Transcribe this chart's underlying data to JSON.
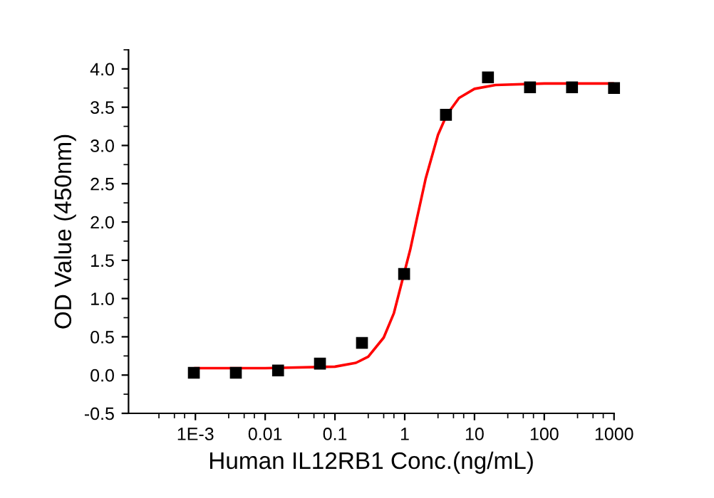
{
  "chart_data": {
    "type": "scatter",
    "xlabel": "Human IL12RB1 Conc.(ng/mL)",
    "ylabel": "OD Value (450nm)",
    "log": "x",
    "grid": false,
    "marker": "square",
    "xlim": [
      0.00011,
      1000
    ],
    "xticks": [
      {
        "value": 0.001,
        "label": "1E-3"
      },
      0.01,
      0.1,
      1,
      10,
      100,
      1000
    ],
    "ylim": [
      -0.5,
      4.25
    ],
    "yticks": [
      -0.5,
      {
        "value": 0,
        "label": "0.0"
      },
      0.5,
      {
        "value": 1,
        "label": "1.0"
      },
      1.5,
      {
        "value": 2,
        "label": "2.0"
      },
      2.5,
      {
        "value": 3,
        "label": "3.0"
      },
      3.5,
      {
        "value": 4,
        "label": "4.0"
      }
    ],
    "series": [
      {
        "color": "#000000",
        "x": [
          0.00095,
          0.0038,
          0.0153,
          0.061,
          0.244,
          0.98,
          3.9,
          15.6,
          62.5,
          250,
          1000
        ],
        "values": [
          0.03,
          0.03,
          0.06,
          0.15,
          0.42,
          1.32,
          3.4,
          3.89,
          3.76,
          3.76,
          3.75
        ]
      },
      {
        "type": "line",
        "color": "#ff0000",
        "marker": "none",
        "x": [
          0.001,
          0.01,
          0.1,
          0.2,
          0.3,
          0.5,
          0.7,
          1.2,
          1.5,
          2,
          3,
          4,
          6,
          10,
          20,
          100,
          1000
        ],
        "values": [
          0.09,
          0.09,
          0.11,
          0.16,
          0.24,
          0.49,
          0.81,
          1.64,
          2.05,
          2.57,
          3.14,
          3.4,
          3.62,
          3.74,
          3.79,
          3.81,
          3.81
        ]
      }
    ]
  }
}
